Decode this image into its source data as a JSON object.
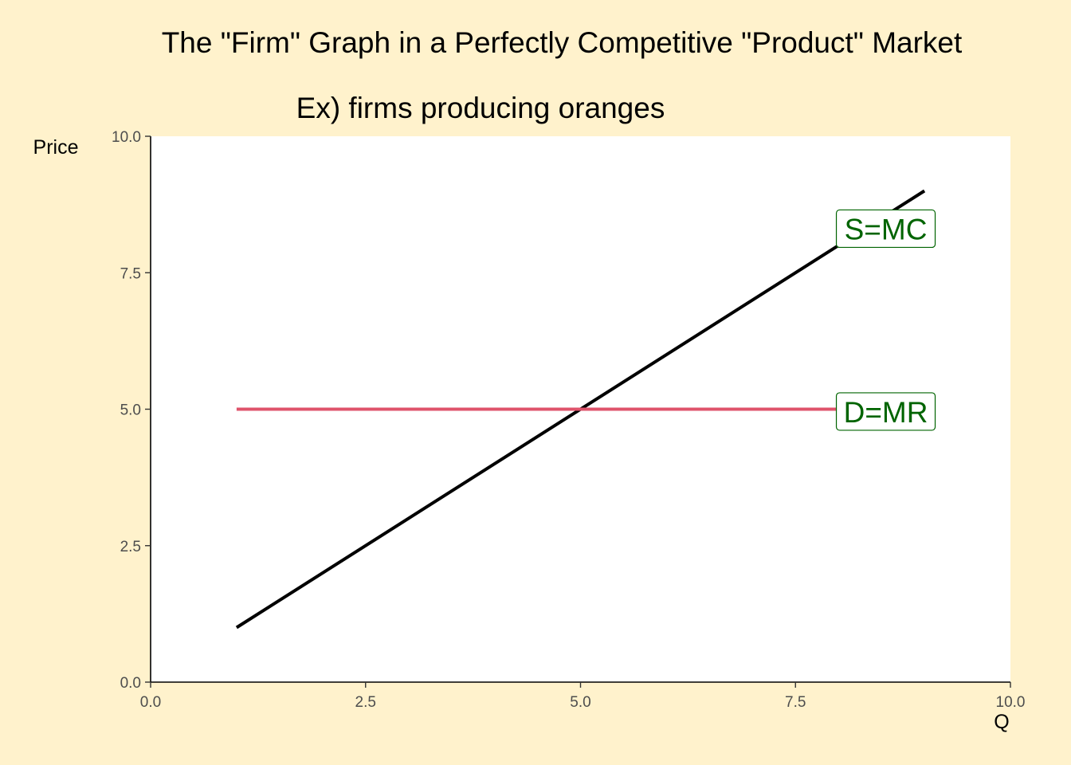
{
  "chart_data": {
    "type": "line",
    "title": "The \"Firm\" Graph in a Perfectly Competitive \"Product\" Market",
    "subtitle": "Ex) firms producing oranges",
    "xlabel": "Q",
    "ylabel": "Price",
    "xlim": [
      0,
      10
    ],
    "ylim": [
      0,
      10
    ],
    "x_ticks": [
      "0.0",
      "2.5",
      "5.0",
      "7.5",
      "10.0"
    ],
    "y_ticks": [
      "0.0",
      "2.5",
      "5.0",
      "7.5",
      "10.0"
    ],
    "x_tick_values": [
      0,
      2.5,
      5,
      7.5,
      10
    ],
    "y_tick_values": [
      0,
      2.5,
      5,
      7.5,
      10
    ],
    "grid": false,
    "series": [
      {
        "name": "S=MC",
        "x": [
          1,
          9
        ],
        "y": [
          1,
          9
        ],
        "color": "#000000",
        "label_x": 8.55,
        "label_y": 8.3
      },
      {
        "name": "D=MR",
        "x": [
          1,
          8
        ],
        "y": [
          5,
          5
        ],
        "color": "#DF536B",
        "label_x": 8.55,
        "label_y": 4.95
      }
    ],
    "label_color": "#006400",
    "background_color": "#FFF2CC",
    "panel_color": "#FFFFFF"
  }
}
